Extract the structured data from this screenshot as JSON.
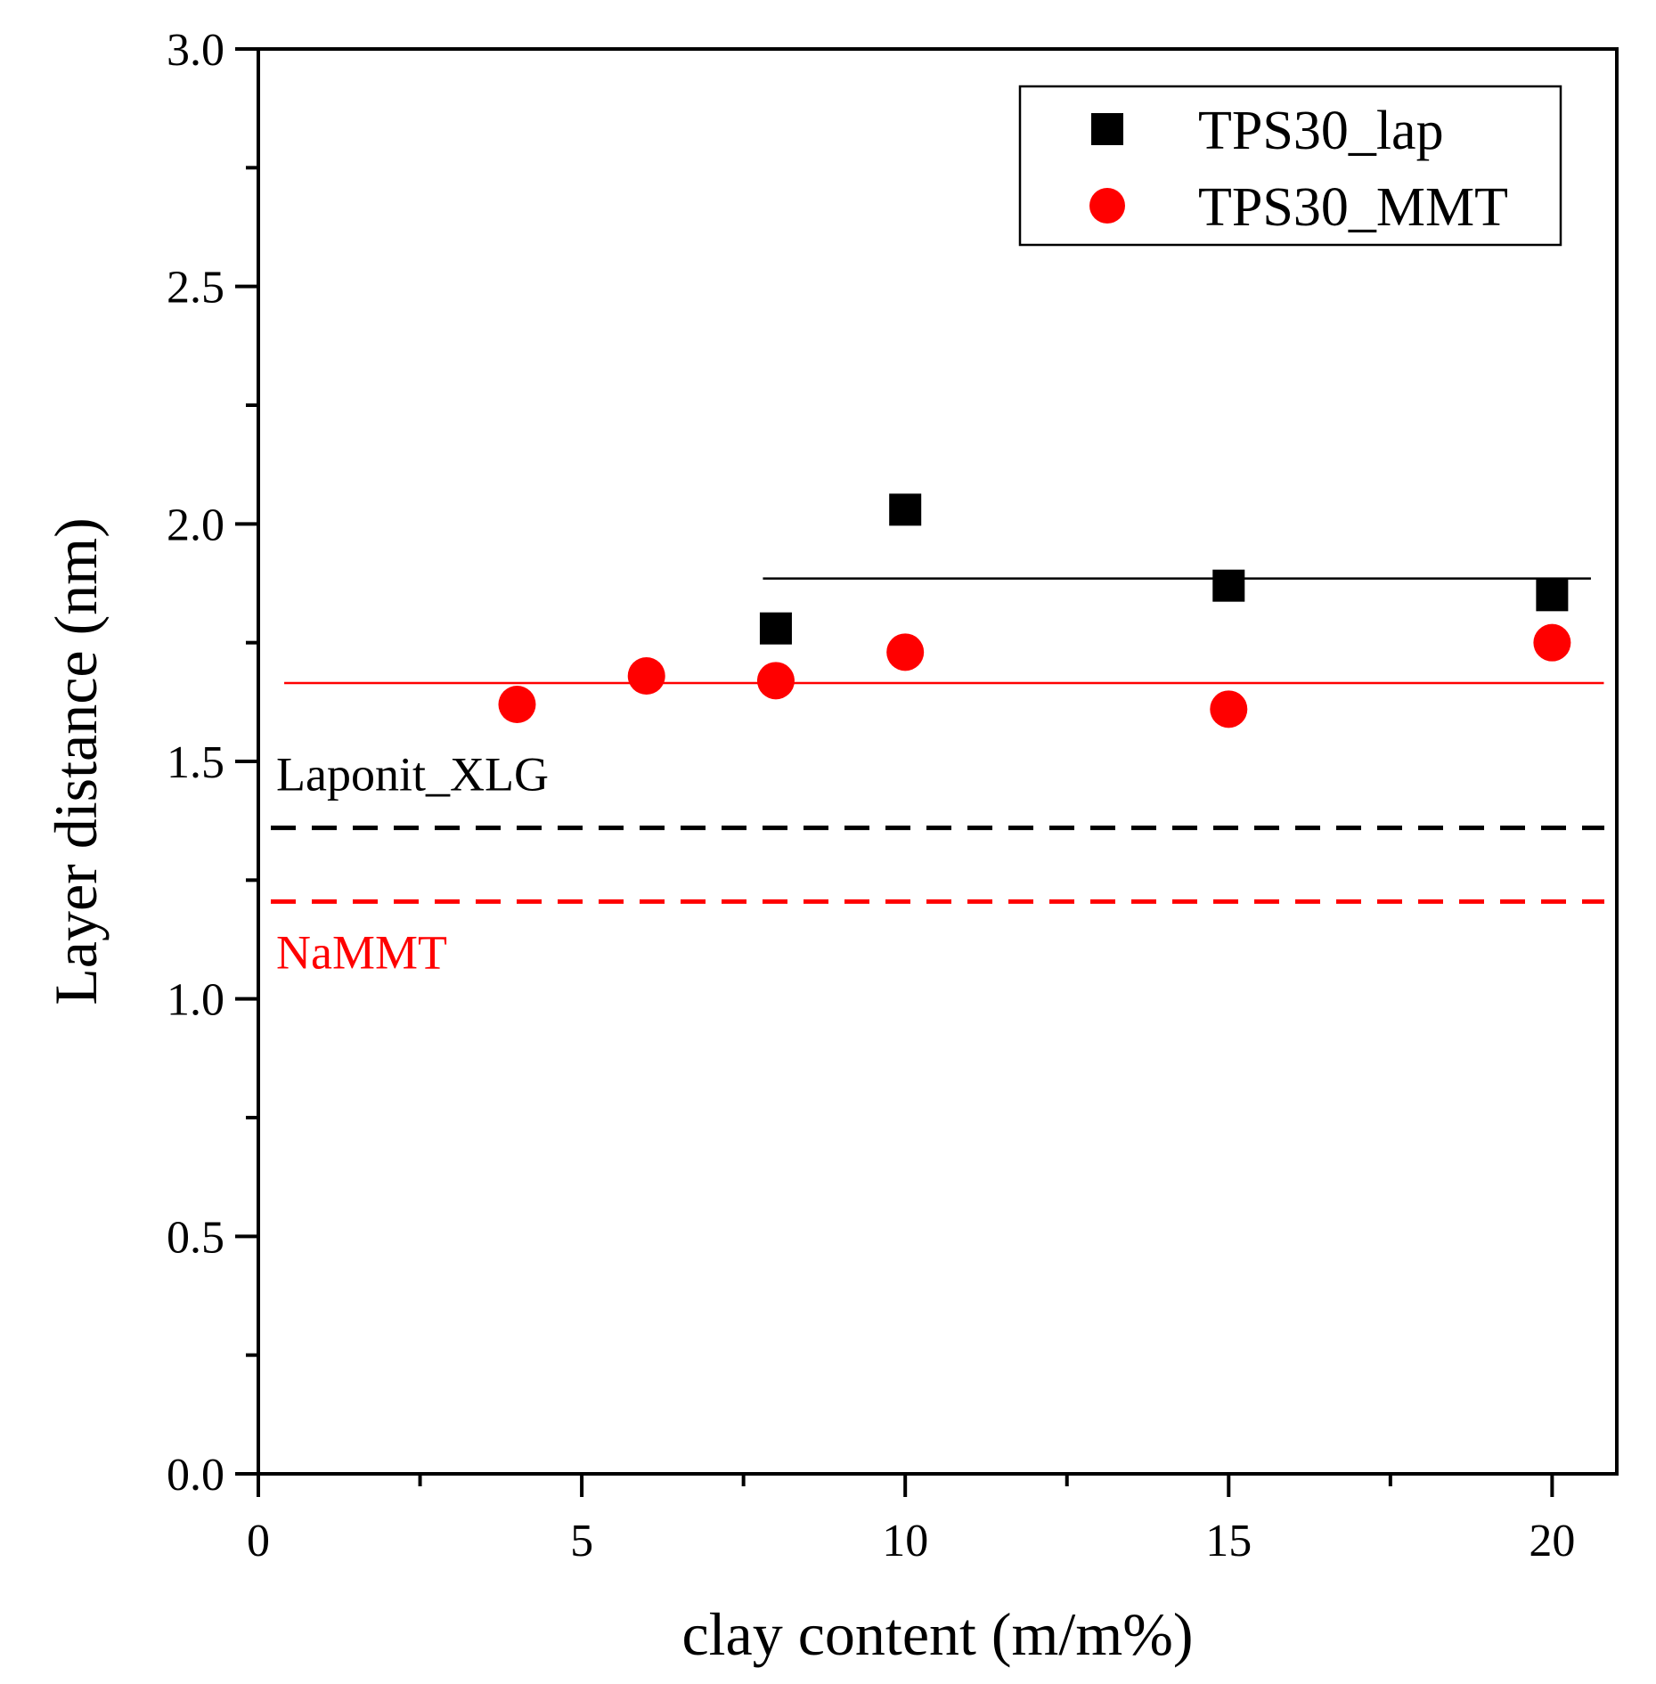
{
  "chart_data": {
    "type": "scatter",
    "xlabel": "clay content (m/m%)",
    "ylabel": "Layer distance (nm)",
    "xlim": [
      0,
      21
    ],
    "ylim": [
      0,
      3.0
    ],
    "x_ticks": [
      0,
      5,
      10,
      15,
      20
    ],
    "x_tick_labels": [
      "0",
      "5",
      "10",
      "15",
      "20"
    ],
    "y_ticks": [
      0.0,
      0.5,
      1.0,
      1.5,
      2.0,
      2.5,
      3.0
    ],
    "y_tick_labels": [
      "0.0",
      "0.5",
      "1.0",
      "1.5",
      "2.0",
      "2.5",
      "3.0"
    ],
    "y_minor_step": 0.25,
    "legend_position": "top-right",
    "series": [
      {
        "name": "TPS30_lap",
        "marker": "square",
        "color": "#000000",
        "points": [
          {
            "x": 8,
            "y": 1.78
          },
          {
            "x": 10,
            "y": 2.03
          },
          {
            "x": 15,
            "y": 1.87
          },
          {
            "x": 20,
            "y": 1.85
          }
        ]
      },
      {
        "name": "TPS30_MMT",
        "marker": "circle",
        "color": "#ff0000",
        "points": [
          {
            "x": 4,
            "y": 1.62
          },
          {
            "x": 6,
            "y": 1.68
          },
          {
            "x": 8,
            "y": 1.67
          },
          {
            "x": 10,
            "y": 1.73
          },
          {
            "x": 15,
            "y": 1.61
          },
          {
            "x": 20,
            "y": 1.75
          }
        ]
      }
    ],
    "mean_lines": [
      {
        "series": "TPS30_lap",
        "y": 1.885,
        "x_start": 7.8,
        "x_end": 20.6,
        "color": "#000000"
      },
      {
        "series": "TPS30_MMT",
        "y": 1.665,
        "x_start": 0.4,
        "x_end": 20.8,
        "color": "#ff0000"
      }
    ],
    "reference_lines": [
      {
        "label": "Laponit_XLG",
        "y": 1.36,
        "color": "#000000",
        "style": "dashed"
      },
      {
        "label": "NaMMT",
        "y": 1.205,
        "color": "#ff0000",
        "style": "dashed"
      }
    ]
  }
}
